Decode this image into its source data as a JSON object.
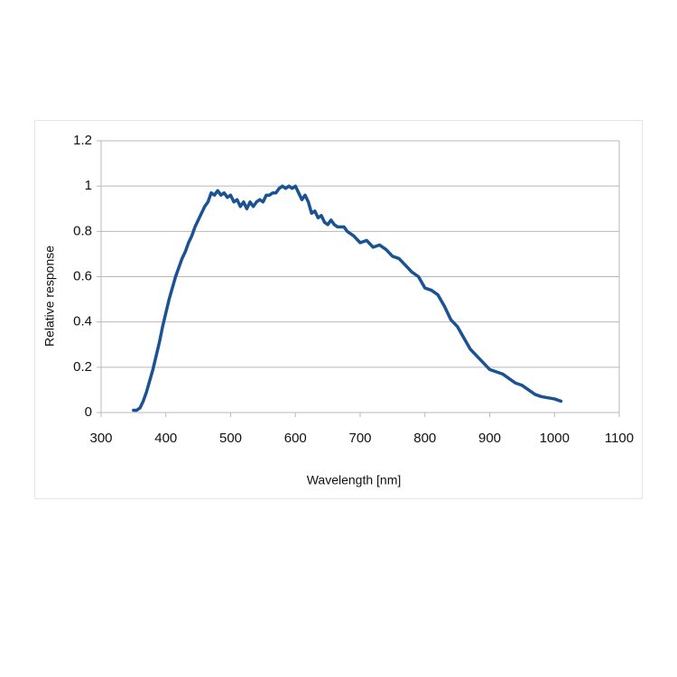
{
  "chart_data": {
    "type": "line",
    "x_label": "Wavelength [nm]",
    "y_label": "Relative response",
    "x": [
      350,
      355,
      360,
      365,
      370,
      375,
      380,
      385,
      390,
      395,
      400,
      405,
      410,
      415,
      420,
      425,
      430,
      435,
      440,
      445,
      450,
      455,
      460,
      465,
      470,
      475,
      480,
      485,
      490,
      495,
      500,
      505,
      510,
      515,
      520,
      525,
      530,
      535,
      540,
      545,
      550,
      555,
      560,
      565,
      570,
      575,
      580,
      585,
      590,
      595,
      600,
      605,
      610,
      615,
      620,
      625,
      630,
      635,
      640,
      645,
      650,
      655,
      660,
      665,
      670,
      675,
      680,
      690,
      700,
      710,
      720,
      730,
      740,
      750,
      760,
      770,
      780,
      790,
      800,
      810,
      820,
      830,
      840,
      850,
      860,
      870,
      880,
      890,
      900,
      910,
      920,
      930,
      940,
      950,
      960,
      970,
      980,
      990,
      1000,
      1010
    ],
    "values": [
      0.01,
      0.01,
      0.02,
      0.05,
      0.09,
      0.14,
      0.19,
      0.25,
      0.31,
      0.38,
      0.44,
      0.5,
      0.55,
      0.6,
      0.64,
      0.68,
      0.71,
      0.75,
      0.78,
      0.82,
      0.85,
      0.88,
      0.91,
      0.93,
      0.97,
      0.96,
      0.98,
      0.96,
      0.97,
      0.95,
      0.96,
      0.93,
      0.94,
      0.91,
      0.93,
      0.9,
      0.93,
      0.91,
      0.93,
      0.94,
      0.93,
      0.96,
      0.96,
      0.97,
      0.97,
      0.99,
      1.0,
      0.99,
      1.0,
      0.99,
      1.0,
      0.97,
      0.94,
      0.96,
      0.93,
      0.88,
      0.89,
      0.86,
      0.87,
      0.84,
      0.83,
      0.85,
      0.83,
      0.82,
      0.82,
      0.82,
      0.8,
      0.78,
      0.75,
      0.76,
      0.73,
      0.74,
      0.72,
      0.69,
      0.68,
      0.65,
      0.62,
      0.6,
      0.55,
      0.54,
      0.52,
      0.47,
      0.41,
      0.38,
      0.33,
      0.28,
      0.25,
      0.22,
      0.19,
      0.18,
      0.17,
      0.15,
      0.13,
      0.12,
      0.1,
      0.08,
      0.07,
      0.065,
      0.06,
      0.05
    ],
    "color": "#1a5294",
    "xlim": [
      300,
      1100
    ],
    "xticks": [
      300,
      400,
      500,
      600,
      700,
      800,
      900,
      1000,
      1100
    ],
    "ylim": [
      0,
      1.2
    ],
    "yticks": [
      0,
      0.2,
      0.4,
      0.6,
      0.8,
      1,
      1.2
    ],
    "grid": true
  }
}
